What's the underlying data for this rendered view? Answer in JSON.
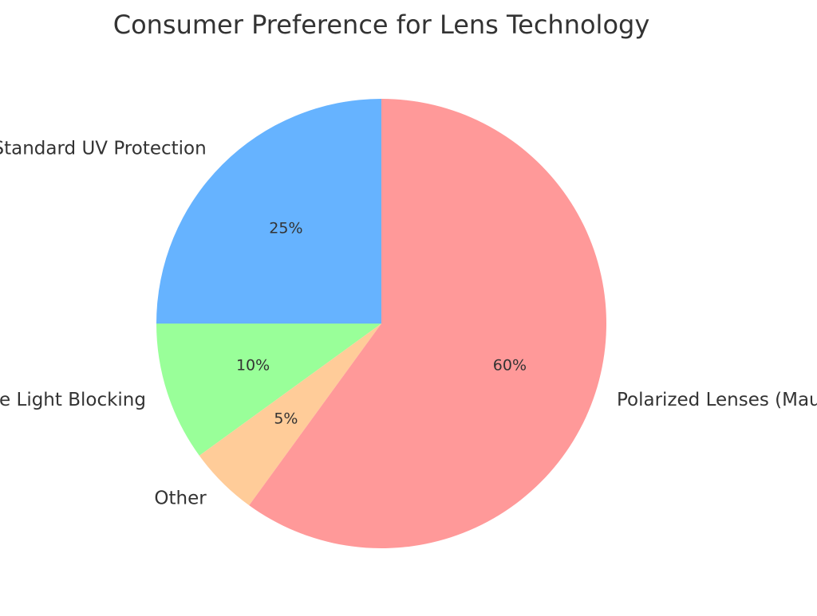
{
  "chart_data": {
    "type": "pie",
    "title": "Consumer Preference for Lens Technology",
    "start_angle_deg": 90,
    "direction": "counterclockwise",
    "slices": [
      {
        "label": "Standard UV Protection",
        "value": 25,
        "pct_label": "25%",
        "color": "#66b3ff"
      },
      {
        "label": "Blue Light Blocking",
        "value": 10,
        "pct_label": "10%",
        "color": "#99ff99"
      },
      {
        "label": "Other",
        "value": 5,
        "pct_label": "5%",
        "color": "#ffcc99"
      },
      {
        "label": "Polarized Lenses (Maui Jim)",
        "value": 60,
        "pct_label": "60%",
        "color": "#ff9999"
      }
    ]
  }
}
